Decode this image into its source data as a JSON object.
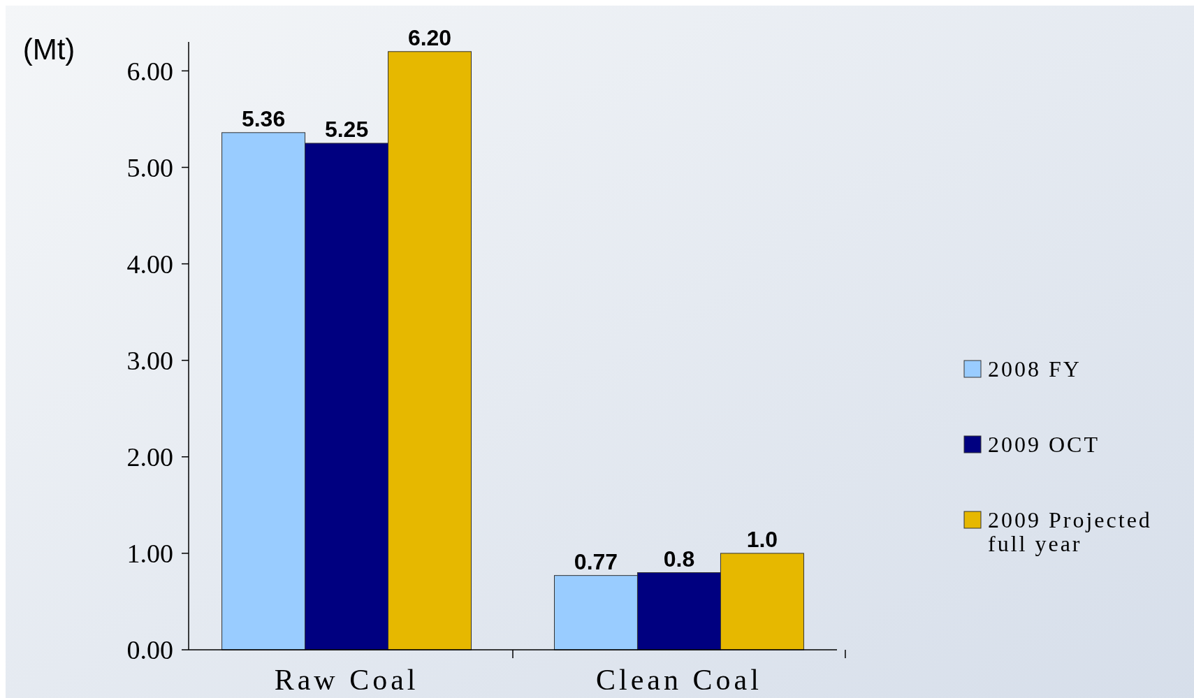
{
  "chart_data": {
    "type": "bar",
    "ylabel": "(Mt)",
    "categories": [
      "Raw Coal",
      "Clean Coal"
    ],
    "series": [
      {
        "name": "2008 FY",
        "color": "#99ccff",
        "values": [
          5.36,
          0.77
        ],
        "value_labels": [
          "5.36",
          "0.77"
        ]
      },
      {
        "name": "2009 OCT",
        "color": "#000080",
        "values": [
          5.25,
          0.8
        ],
        "value_labels": [
          "5.25",
          "0.8"
        ]
      },
      {
        "name": "2009 Projected full year",
        "color": "#e6b800",
        "values": [
          6.2,
          1.0
        ],
        "value_labels": [
          "6.20",
          "1.0"
        ]
      }
    ],
    "ylim": [
      0,
      6.3
    ],
    "yticks": [
      {
        "value": 0,
        "label": "0.00"
      },
      {
        "value": 1,
        "label": "1.00"
      },
      {
        "value": 2,
        "label": "2.00"
      },
      {
        "value": 3,
        "label": "3.00"
      },
      {
        "value": 4,
        "label": "4.00"
      },
      {
        "value": 5,
        "label": "5.00"
      },
      {
        "value": 6,
        "label": "6.00"
      }
    ],
    "grid": false,
    "legend": "right"
  }
}
